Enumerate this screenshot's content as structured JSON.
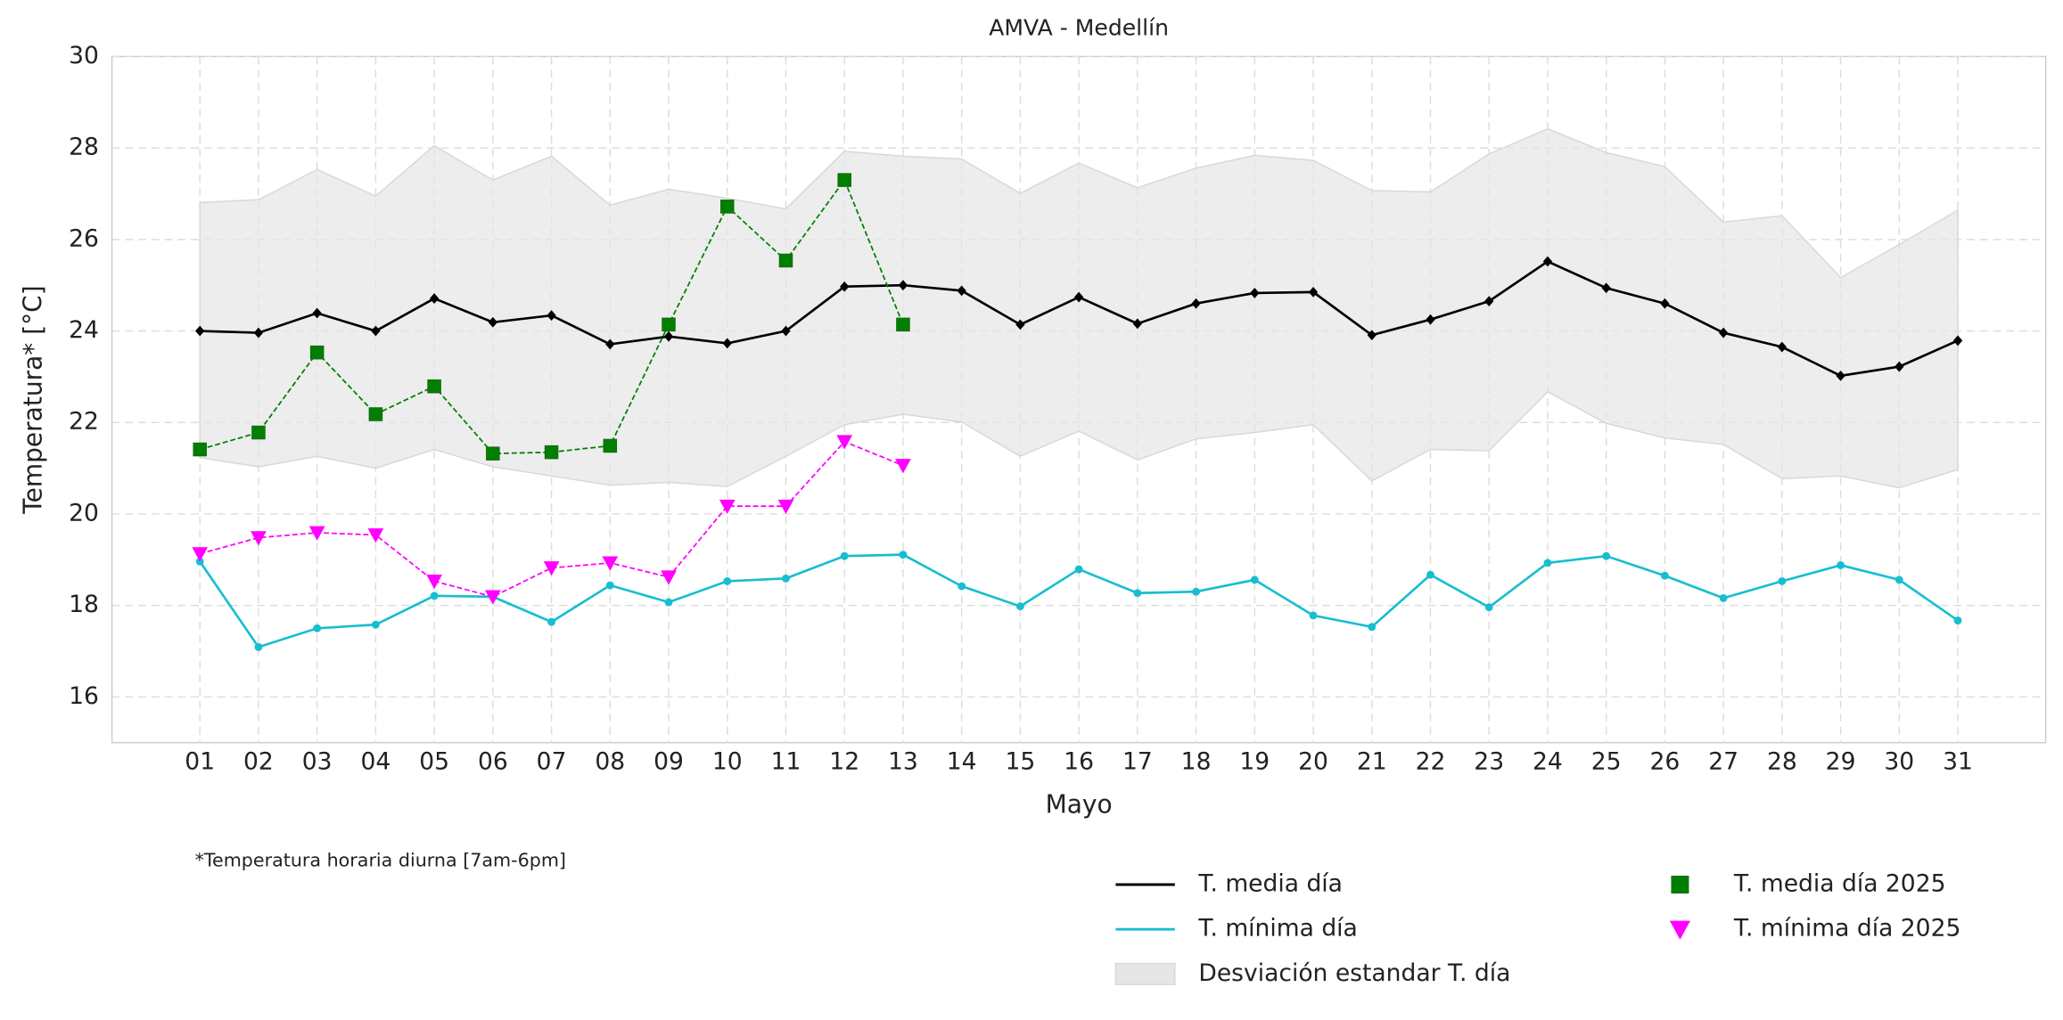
{
  "chart_data": {
    "type": "line",
    "title": "AMVA - Medellín",
    "x_label": "Mayo",
    "y_label": "Temperatura* [°C]",
    "note": "*Temperatura horaria diurna [7am-6pm]",
    "categories": [
      "01",
      "02",
      "03",
      "04",
      "05",
      "06",
      "07",
      "08",
      "09",
      "10",
      "11",
      "12",
      "13",
      "14",
      "15",
      "16",
      "17",
      "18",
      "19",
      "20",
      "21",
      "22",
      "23",
      "24",
      "25",
      "26",
      "27",
      "28",
      "29",
      "30",
      "31"
    ],
    "ylim": [
      15,
      30
    ],
    "yticks": [
      16,
      18,
      20,
      22,
      24,
      26,
      28,
      30
    ],
    "grid": true,
    "legend_position": "lower right",
    "series": [
      {
        "name": "T. media día",
        "kind": "line",
        "color": "#000000",
        "marker": "diamond",
        "linestyle": "solid",
        "values": [
          24.0,
          23.96,
          24.39,
          24.0,
          24.71,
          24.19,
          24.34,
          23.71,
          23.88,
          23.73,
          24.0,
          24.97,
          25.0,
          24.88,
          24.14,
          24.74,
          24.16,
          24.6,
          24.83,
          24.85,
          23.91,
          24.25,
          24.65,
          25.52,
          24.94,
          24.6,
          23.96,
          23.65,
          23.02,
          23.22,
          23.79
        ]
      },
      {
        "name": "T. mínima día",
        "kind": "line",
        "color": "#17becf",
        "marker": "circle",
        "linestyle": "solid",
        "values": [
          18.96,
          17.09,
          17.5,
          17.58,
          18.21,
          18.19,
          17.64,
          18.44,
          18.07,
          18.53,
          18.59,
          19.08,
          19.11,
          18.42,
          17.98,
          18.79,
          18.27,
          18.3,
          18.56,
          17.78,
          17.53,
          18.67,
          17.96,
          18.93,
          19.08,
          18.65,
          18.16,
          18.53,
          18.88,
          18.56,
          17.67
        ]
      },
      {
        "name": "Desviación estandar T. día",
        "kind": "band",
        "color": "#e6e6e6",
        "upper": [
          26.81,
          26.87,
          27.53,
          26.95,
          28.05,
          27.3,
          27.82,
          26.75,
          27.1,
          26.9,
          26.67,
          27.93,
          27.82,
          27.76,
          27.01,
          27.67,
          27.13,
          27.56,
          27.84,
          27.73,
          27.07,
          27.04,
          27.87,
          28.42,
          27.9,
          27.59,
          26.38,
          26.52,
          25.17,
          25.89,
          26.64
        ],
        "lower": [
          21.23,
          21.03,
          21.26,
          21.0,
          21.41,
          21.03,
          20.83,
          20.63,
          20.69,
          20.6,
          21.26,
          21.95,
          22.18,
          22.01,
          21.26,
          21.81,
          21.18,
          21.64,
          21.78,
          21.95,
          20.72,
          21.41,
          21.38,
          22.67,
          21.98,
          21.66,
          21.52,
          20.77,
          20.83,
          20.57,
          20.97
        ]
      },
      {
        "name": "T. media día 2025",
        "kind": "line",
        "color": "#008000",
        "marker": "square",
        "linestyle": "dashed",
        "values": [
          21.41,
          21.78,
          23.53,
          22.18,
          22.79,
          21.32,
          21.35,
          21.49,
          24.14,
          26.72,
          25.54,
          27.3,
          24.14,
          null,
          null,
          null,
          null,
          null,
          null,
          null,
          null,
          null,
          null,
          null,
          null,
          null,
          null,
          null,
          null,
          null,
          null
        ]
      },
      {
        "name": "T. mínima día 2025",
        "kind": "line",
        "color": "#ff00ff",
        "marker": "triangle-down",
        "linestyle": "dashed",
        "values": [
          19.13,
          19.48,
          19.59,
          19.54,
          18.53,
          18.19,
          18.82,
          18.93,
          18.62,
          20.17,
          20.17,
          21.58,
          21.06,
          null,
          null,
          null,
          null,
          null,
          null,
          null,
          null,
          null,
          null,
          null,
          null,
          null,
          null,
          null,
          null,
          null,
          null
        ]
      }
    ]
  }
}
